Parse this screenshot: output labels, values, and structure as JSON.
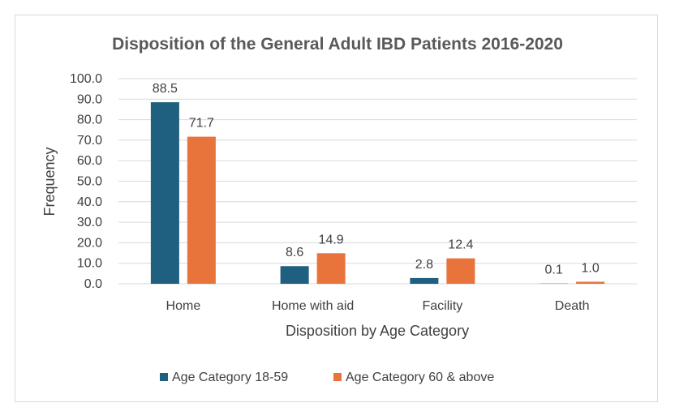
{
  "chart_data": {
    "type": "bar",
    "title": "Disposition of the General Adult IBD Patients 2016-2020",
    "xlabel": "Disposition by Age Category",
    "ylabel": "Frequency",
    "categories": [
      "Home",
      "Home with aid",
      "Facility",
      "Death"
    ],
    "series": [
      {
        "name": "Age Category 18-59",
        "color": "#1f5f7f",
        "values": [
          88.5,
          8.6,
          2.8,
          0.1
        ]
      },
      {
        "name": "Age Category 60 & above",
        "color": "#e8743b",
        "values": [
          71.7,
          14.9,
          12.4,
          1.0
        ]
      }
    ],
    "ylim": [
      0,
      100
    ],
    "yticks": [
      "0.0",
      "10.0",
      "20.0",
      "30.0",
      "40.0",
      "50.0",
      "60.0",
      "70.0",
      "80.0",
      "90.0",
      "100.0"
    ],
    "grid": true,
    "legend_position": "bottom",
    "gridline_color": "#d9d9d9"
  }
}
